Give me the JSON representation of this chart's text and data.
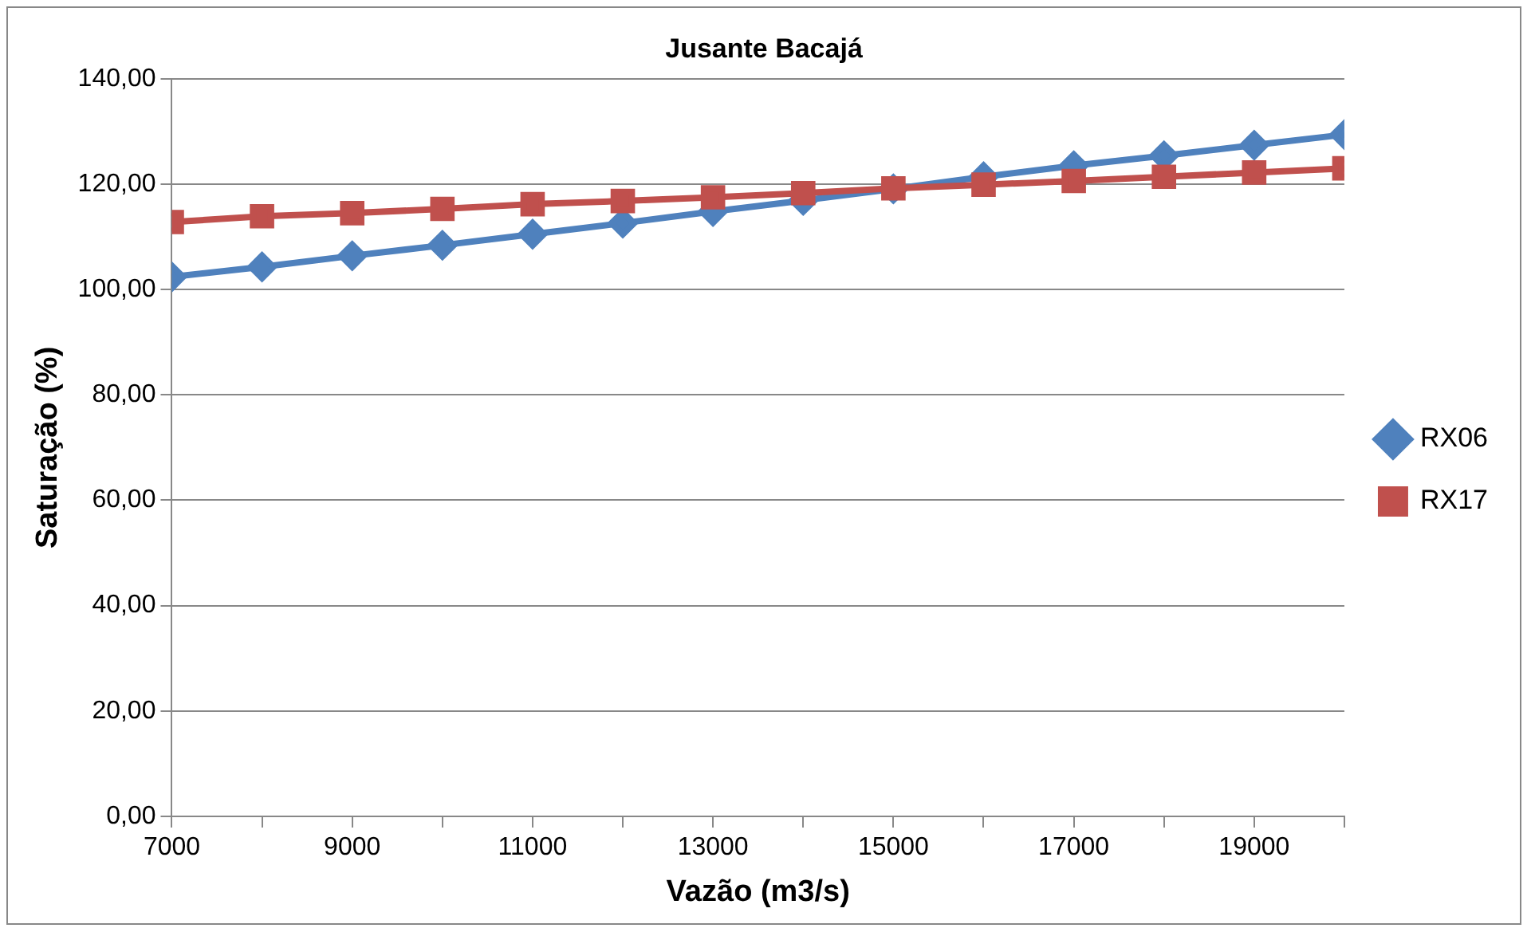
{
  "chart_data": {
    "type": "line",
    "title": "Jusante Bacajá",
    "xlabel": "Vazão (m3/s)",
    "ylabel": "Saturação (%)",
    "x": [
      7000,
      8000,
      9000,
      10000,
      11000,
      12000,
      13000,
      14000,
      15000,
      16000,
      17000,
      18000,
      19000,
      20000
    ],
    "series": [
      {
        "name": "RX06",
        "color": "#4f81bd",
        "marker": "diamond",
        "values": [
          102.4,
          104.3,
          106.4,
          108.4,
          110.5,
          112.6,
          114.8,
          116.9,
          119.1,
          121.4,
          123.5,
          125.4,
          127.4,
          129.4
        ]
      },
      {
        "name": "RX17",
        "color": "#c0504d",
        "marker": "square",
        "values": [
          112.8,
          113.9,
          114.5,
          115.3,
          116.2,
          116.8,
          117.5,
          118.3,
          119.2,
          119.9,
          120.6,
          121.4,
          122.2,
          123.0
        ]
      }
    ],
    "xlim": [
      7000,
      20000
    ],
    "xticks": [
      7000,
      {
        "value": 8000,
        "label": null
      },
      9000,
      {
        "value": 10000,
        "label": null
      },
      11000,
      {
        "value": 12000,
        "label": null
      },
      13000,
      {
        "value": 14000,
        "label": null
      },
      15000,
      {
        "value": 16000,
        "label": null
      },
      17000,
      {
        "value": 18000,
        "label": null
      },
      19000,
      {
        "value": 20000,
        "label": null
      }
    ],
    "ylim": [
      0,
      140
    ],
    "yticks": [
      {
        "value": 0,
        "label": "0,00"
      },
      {
        "value": 20,
        "label": "20,00"
      },
      {
        "value": 40,
        "label": "40,00"
      },
      {
        "value": 60,
        "label": "60,00"
      },
      {
        "value": 80,
        "label": "80,00"
      },
      {
        "value": 100,
        "label": "100,00"
      },
      {
        "value": 120,
        "label": "120,00"
      },
      {
        "value": 140,
        "label": "140,00"
      }
    ],
    "grid": "y",
    "legend": "right",
    "line_style": "solid"
  }
}
